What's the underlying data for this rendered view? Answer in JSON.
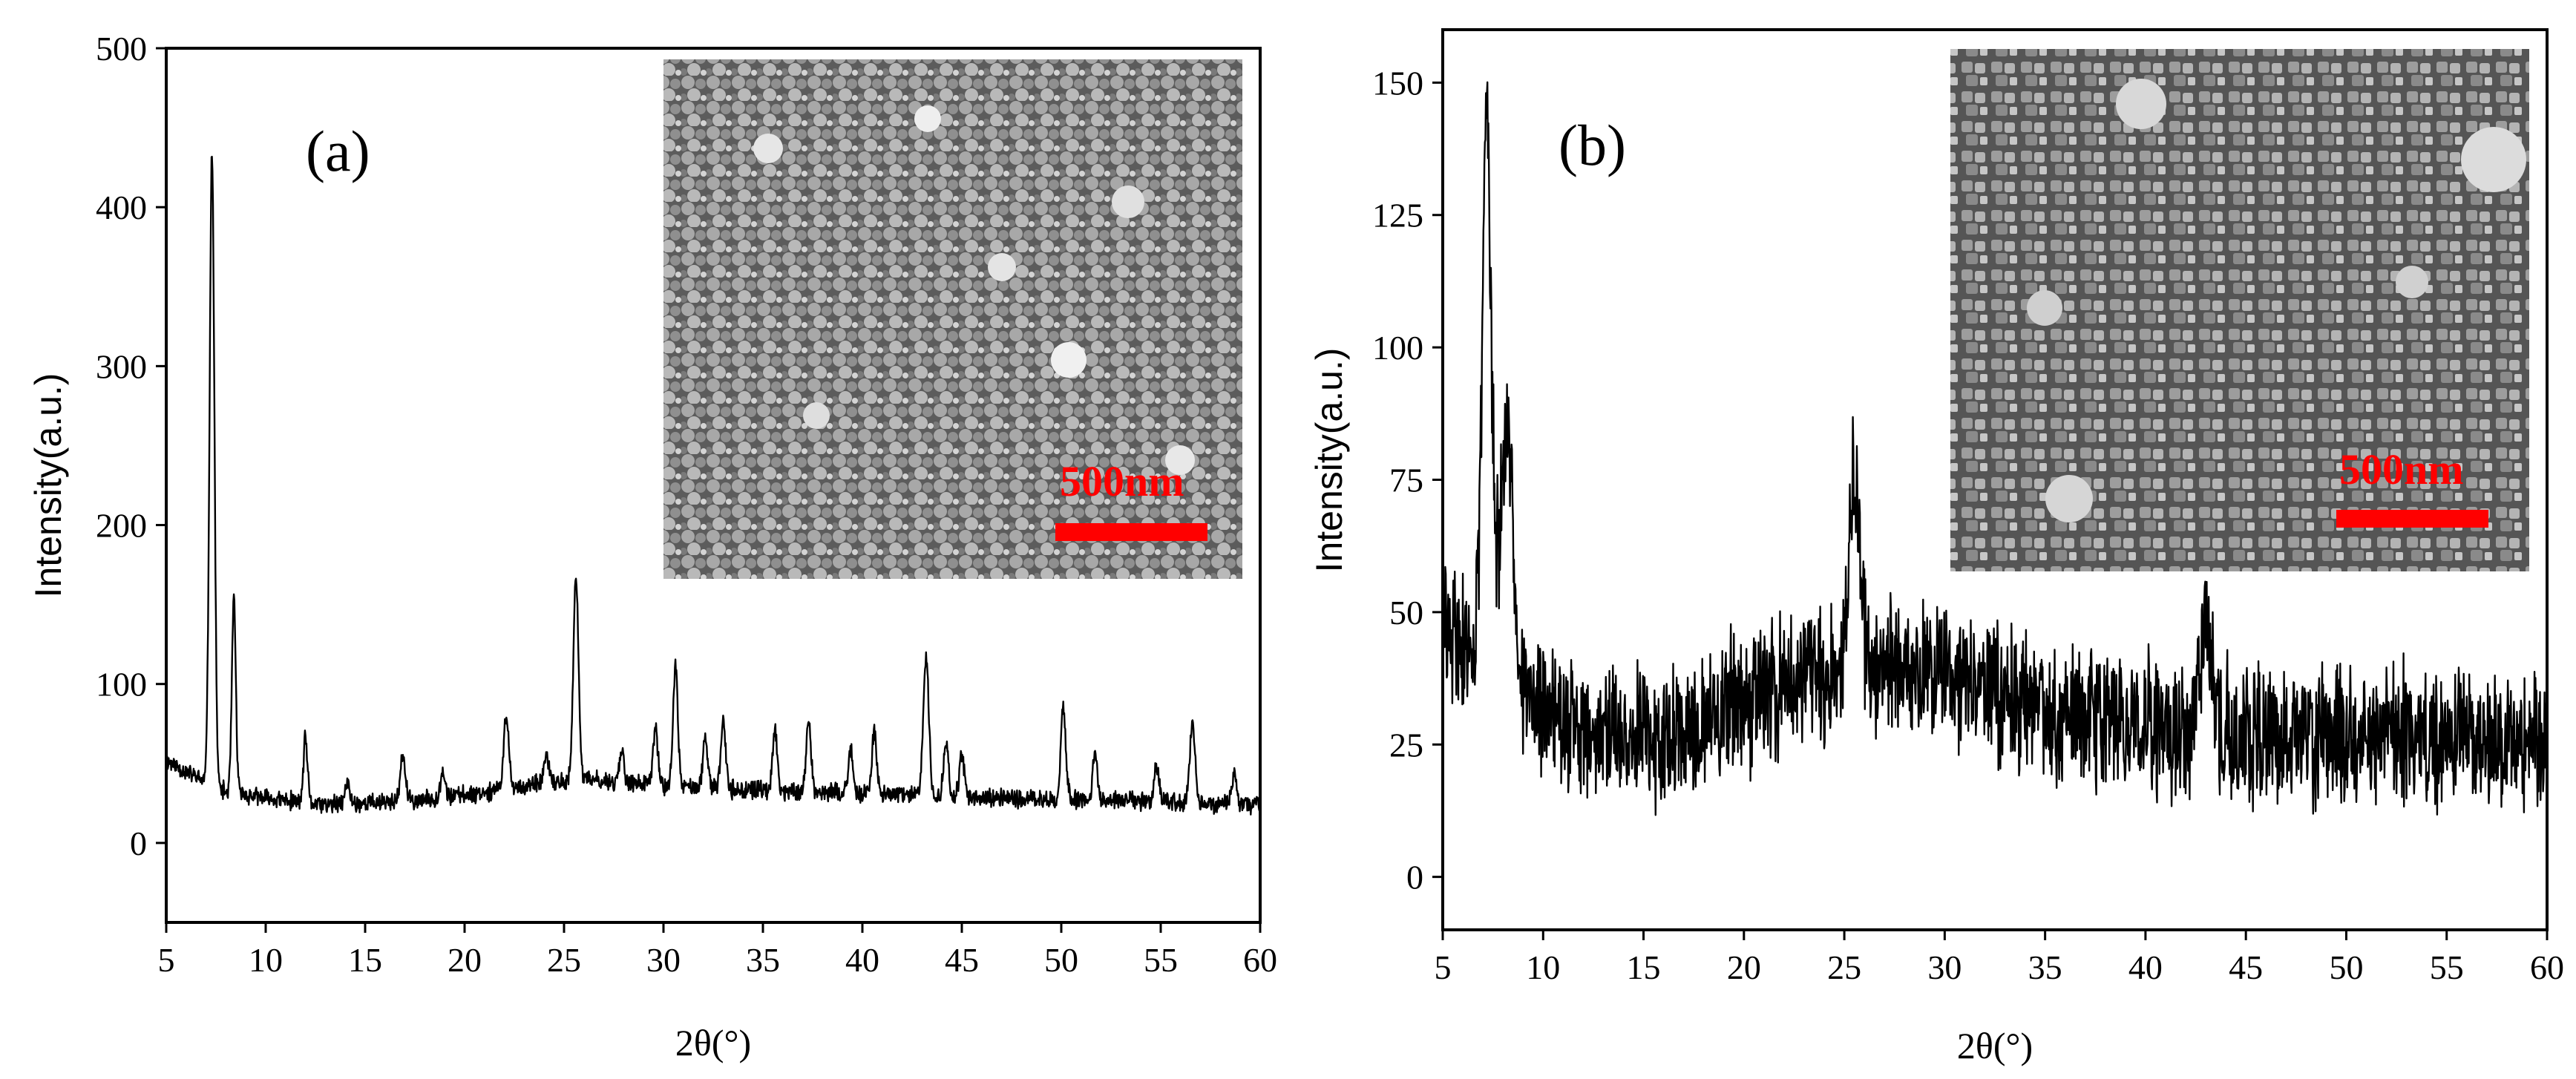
{
  "colors": {
    "trace": "#000000",
    "scale_bar": "#ff0000",
    "background": "#ffffff"
  },
  "chart_data": [
    {
      "panel": "a",
      "type": "line",
      "label": "(a)",
      "xlabel": "2θ(°)",
      "ylabel": "Intensity(a.u.)",
      "xlim": [
        5,
        60
      ],
      "ylim": [
        -50,
        500
      ],
      "xticks": [
        5,
        10,
        15,
        20,
        25,
        30,
        35,
        40,
        45,
        50,
        55,
        60
      ],
      "yticks": [
        0,
        100,
        200,
        300,
        400,
        500
      ],
      "baseline": [
        [
          5,
          52
        ],
        [
          6,
          45
        ],
        [
          7,
          38
        ],
        [
          8,
          32
        ],
        [
          10,
          28
        ],
        [
          13,
          24
        ],
        [
          18,
          27
        ],
        [
          22,
          34
        ],
        [
          26,
          40
        ],
        [
          30,
          36
        ],
        [
          35,
          33
        ],
        [
          40,
          31
        ],
        [
          45,
          29
        ],
        [
          50,
          27
        ],
        [
          55,
          26
        ],
        [
          60,
          24
        ]
      ],
      "noise": 7,
      "peaks": [
        {
          "x": 7.3,
          "y": 435,
          "w": 0.12
        },
        {
          "x": 8.4,
          "y": 152,
          "w": 0.1
        },
        {
          "x": 12.0,
          "y": 66,
          "w": 0.1
        },
        {
          "x": 14.1,
          "y": 37,
          "w": 0.12
        },
        {
          "x": 16.9,
          "y": 55,
          "w": 0.12
        },
        {
          "x": 18.9,
          "y": 45,
          "w": 0.12
        },
        {
          "x": 22.1,
          "y": 82,
          "w": 0.12
        },
        {
          "x": 24.1,
          "y": 55,
          "w": 0.12
        },
        {
          "x": 25.6,
          "y": 166,
          "w": 0.13
        },
        {
          "x": 27.9,
          "y": 58,
          "w": 0.12
        },
        {
          "x": 29.6,
          "y": 72,
          "w": 0.12
        },
        {
          "x": 30.6,
          "y": 110,
          "w": 0.12
        },
        {
          "x": 32.1,
          "y": 64,
          "w": 0.12
        },
        {
          "x": 33.0,
          "y": 78,
          "w": 0.12
        },
        {
          "x": 35.6,
          "y": 70,
          "w": 0.12
        },
        {
          "x": 37.3,
          "y": 78,
          "w": 0.12
        },
        {
          "x": 39.4,
          "y": 58,
          "w": 0.12
        },
        {
          "x": 40.6,
          "y": 70,
          "w": 0.12
        },
        {
          "x": 43.2,
          "y": 118,
          "w": 0.14
        },
        {
          "x": 44.2,
          "y": 64,
          "w": 0.12
        },
        {
          "x": 45.0,
          "y": 55,
          "w": 0.12
        },
        {
          "x": 50.1,
          "y": 84,
          "w": 0.13
        },
        {
          "x": 51.7,
          "y": 55,
          "w": 0.12
        },
        {
          "x": 54.8,
          "y": 50,
          "w": 0.12
        },
        {
          "x": 56.6,
          "y": 75,
          "w": 0.13
        },
        {
          "x": 58.7,
          "y": 45,
          "w": 0.12
        }
      ],
      "inset": {
        "scale_label": "500nm"
      }
    },
    {
      "panel": "b",
      "type": "line",
      "label": "(b)",
      "xlabel": "2θ(°)",
      "ylabel": "Intensity(a.u.)",
      "xlim": [
        5,
        60
      ],
      "ylim": [
        -10,
        160
      ],
      "xticks": [
        5,
        10,
        15,
        20,
        25,
        30,
        35,
        40,
        45,
        50,
        55,
        60
      ],
      "yticks": [
        0,
        25,
        50,
        75,
        100,
        125,
        150
      ],
      "baseline": [
        [
          5,
          48
        ],
        [
          6,
          44
        ],
        [
          8,
          38
        ],
        [
          10,
          31
        ],
        [
          12,
          27
        ],
        [
          15,
          26
        ],
        [
          18,
          30
        ],
        [
          21,
          35
        ],
        [
          24,
          38
        ],
        [
          27,
          40
        ],
        [
          30,
          38
        ],
        [
          33,
          34
        ],
        [
          36,
          31
        ],
        [
          40,
          29
        ],
        [
          45,
          27
        ],
        [
          50,
          27
        ],
        [
          55,
          27
        ],
        [
          60,
          25
        ]
      ],
      "noise": 16,
      "peaks": [
        {
          "x": 7.2,
          "y": 145,
          "w": 0.22
        },
        {
          "x": 8.2,
          "y": 80,
          "w": 0.35
        },
        {
          "x": 25.5,
          "y": 78,
          "w": 0.25
        },
        {
          "x": 43.0,
          "y": 48,
          "w": 0.3
        }
      ],
      "inset": {
        "scale_label": "500nm"
      }
    }
  ]
}
